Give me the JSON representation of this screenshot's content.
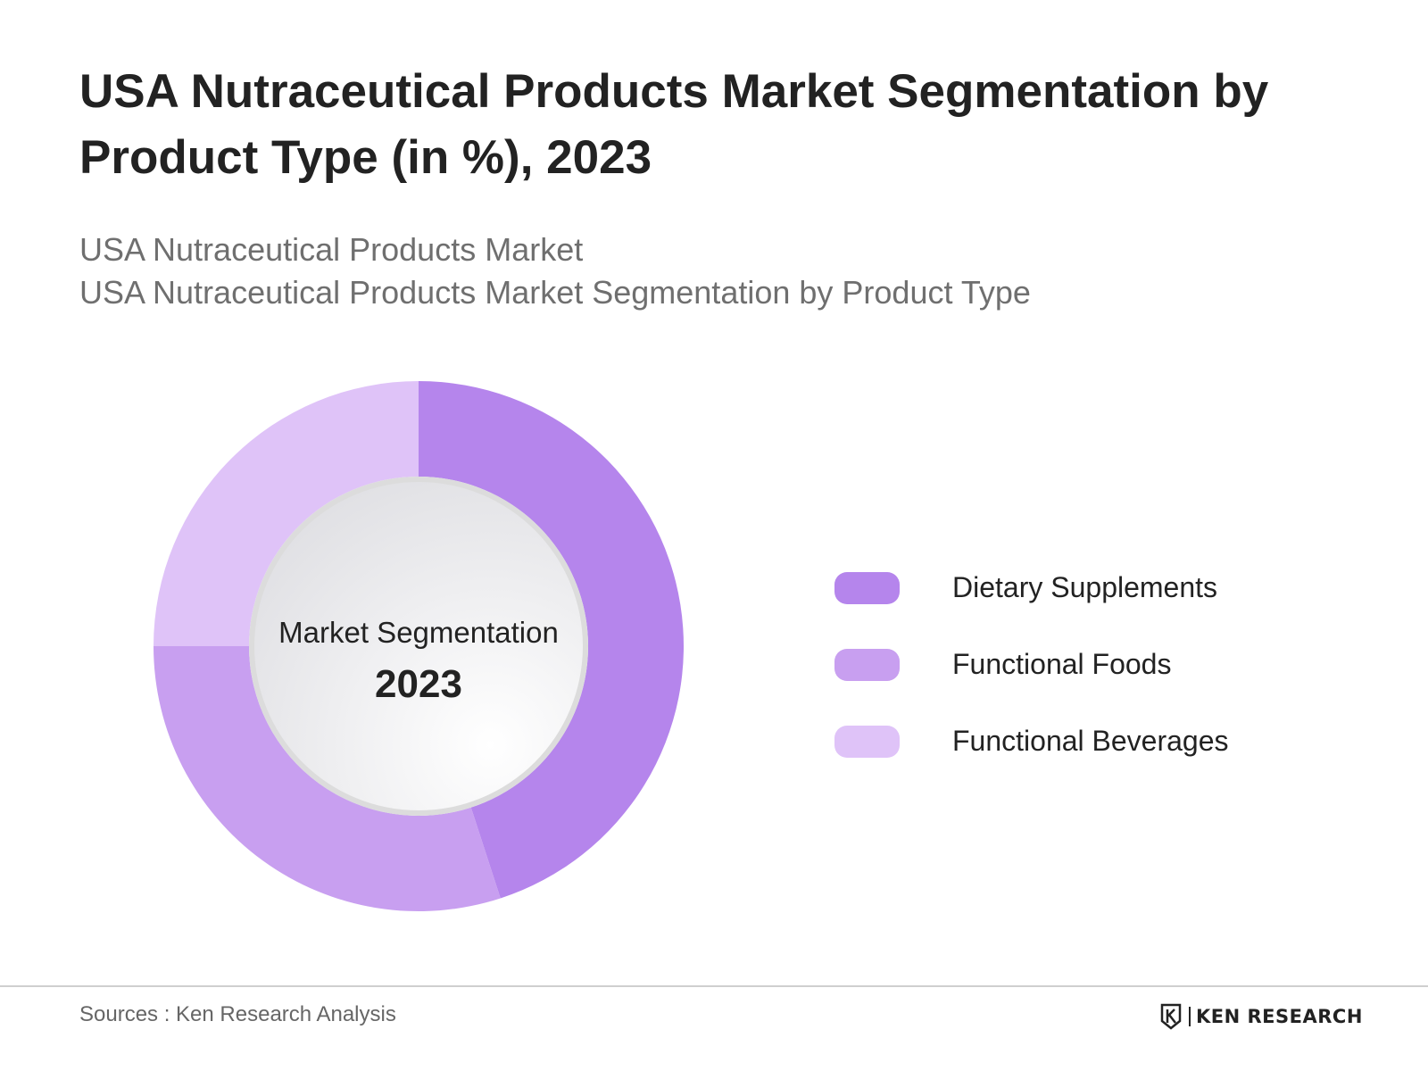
{
  "title": "USA Nutraceutical Products Market Segmentation by Product Type (in %), 2023",
  "subtitle_lines": [
    "USA Nutraceutical Products Market",
    "USA Nutraceutical Products Market Segmentation by Product Type"
  ],
  "center_label": "Market Segmentation",
  "center_year": "2023",
  "source_text": "Sources : Ken Research Analysis",
  "brand": {
    "name": "KEN RESEARCH",
    "logo_icon": "ken-research-k-logo"
  },
  "colors": {
    "dietary_supplements": "#b585ec",
    "functional_foods": "#c89ff0",
    "functional_beverages": "#dfc3f8"
  },
  "chart_data": {
    "type": "pie",
    "variant": "donut",
    "categories": [
      "Dietary Supplements",
      "Functional Foods",
      "Functional Beverages"
    ],
    "values": [
      45,
      30,
      25
    ],
    "colors": [
      "#b585ec",
      "#c89ff0",
      "#dfc3f8"
    ],
    "legend": [
      "Dietary Supplements",
      "Functional Foods",
      "Functional Beverages"
    ],
    "legend_position": "right",
    "start_angle": "12 o'clock",
    "direction": "clockwise"
  }
}
